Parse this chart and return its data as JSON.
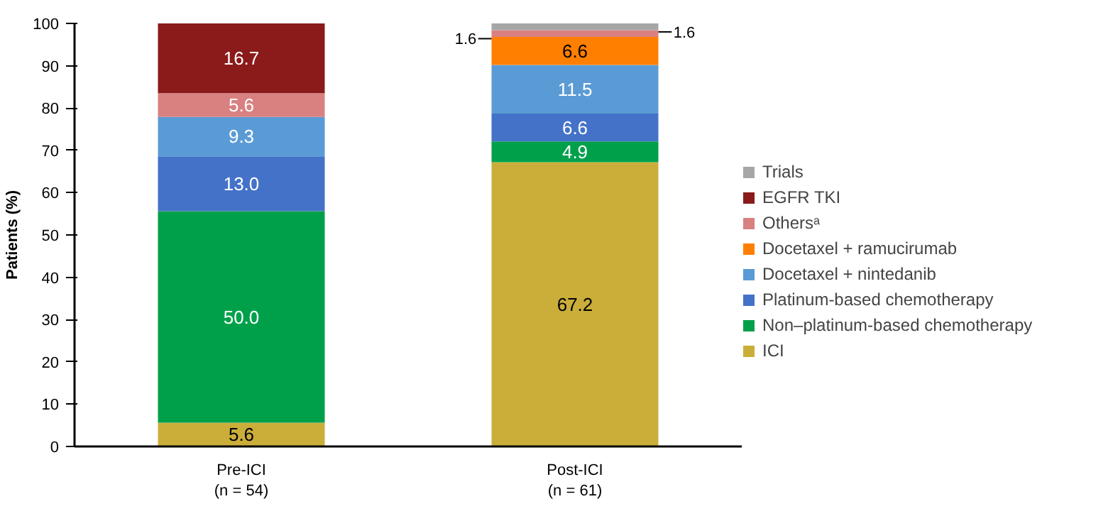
{
  "chart_data": {
    "type": "bar",
    "stacked": true,
    "ylabel": "Patients (%)",
    "categories": [
      "Pre-ICI\n(n = 54)",
      "Post-ICI\n(n = 61)"
    ],
    "ylim": [
      0,
      100
    ],
    "yticks": [
      0,
      10,
      20,
      30,
      40,
      50,
      60,
      70,
      80,
      90,
      100
    ],
    "grid": false,
    "legend": "right",
    "data_labels": true,
    "series": [
      {
        "name": "ICI",
        "color": "#cbae3a",
        "values": [
          5.6,
          67.2
        ],
        "value_labels": [
          "5.6",
          "67.2"
        ]
      },
      {
        "name": "Non–platinum-based chemotherapy",
        "color": "#00a04b",
        "values": [
          50.0,
          4.9
        ],
        "value_labels": [
          "50.0",
          "4.9"
        ]
      },
      {
        "name": "Platinum-based chemotherapy",
        "color": "#4472c8",
        "values": [
          13.0,
          6.6
        ],
        "value_labels": [
          "13.0",
          "6.6"
        ]
      },
      {
        "name": "Docetaxel + nintedanib",
        "color": "#5b9bd5",
        "values": [
          9.3,
          11.5
        ],
        "value_labels": [
          "9.3",
          "11.5"
        ]
      },
      {
        "name": "Docetaxel + ramucirumab",
        "color": "#ff7f00",
        "values": [
          null,
          6.6
        ],
        "value_labels": [
          null,
          "6.6"
        ]
      },
      {
        "name": "Othersᵃ",
        "color": "#d98080",
        "values": [
          5.6,
          1.6
        ],
        "value_labels": [
          "5.6",
          "1.6"
        ]
      },
      {
        "name": "EGFR TKI",
        "color": "#8b1a1a",
        "values": [
          16.7,
          null
        ],
        "value_labels": [
          "16.7",
          null
        ]
      },
      {
        "name": "Trials",
        "color": "#a6a6a6",
        "values": [
          null,
          1.6
        ],
        "value_labels": [
          null,
          "1.6"
        ]
      }
    ]
  }
}
